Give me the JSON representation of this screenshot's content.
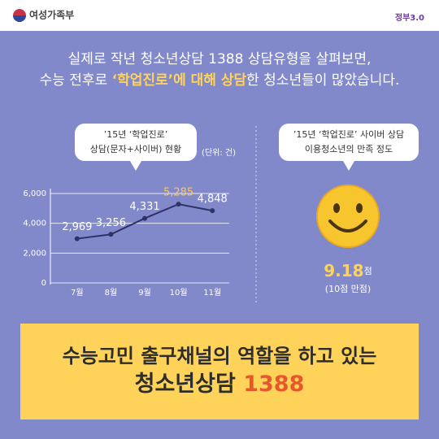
{
  "header": {
    "ministry": "여성가족부",
    "logo": "정부3.0"
  },
  "headline": {
    "line1": "실제로 작년 청소년상담 1388 상담유형을 살펴보면,",
    "line2": [
      "수능 전후로 ",
      "‘학업진로’에 대해 상담",
      "한 청소년들이 많았습니다."
    ]
  },
  "chart_data": {
    "type": "line",
    "title": [
      "’15년 ‘학업진로’",
      "상담(문자+사이버) 현황"
    ],
    "unit": "(단위: 건)",
    "categories": [
      "7월",
      "8월",
      "9월",
      "10월",
      "11월"
    ],
    "values": [
      2969,
      3256,
      4331,
      5285,
      4848
    ],
    "value_labels": [
      "2,969",
      "3,256",
      "4,331",
      "5,285",
      "4,848"
    ],
    "value_label_colors": [
      "#ffffff",
      "#ffffff",
      "#ffffff",
      "#ffc94a",
      "#ffffff"
    ],
    "color": "#2e3266",
    "ylim": [
      0,
      6000
    ],
    "yticks": [
      0,
      {
        "value": 2000,
        "label": "2,000"
      },
      {
        "value": 4000,
        "label": "4,000"
      },
      {
        "value": 6000,
        "label": "6,000"
      }
    ],
    "grid": true
  },
  "satisfaction": {
    "title": [
      "’15년 ‘학업진로’ 사이버 상담",
      "이용청소년의 만족 정도"
    ],
    "score": 9.18,
    "unit": "점",
    "note": "(10점 만점)"
  },
  "banner": {
    "line1": "수능고민 출구채널의 역할을 하고 있는",
    "line2": [
      "청소년상담 ",
      "1388"
    ]
  }
}
